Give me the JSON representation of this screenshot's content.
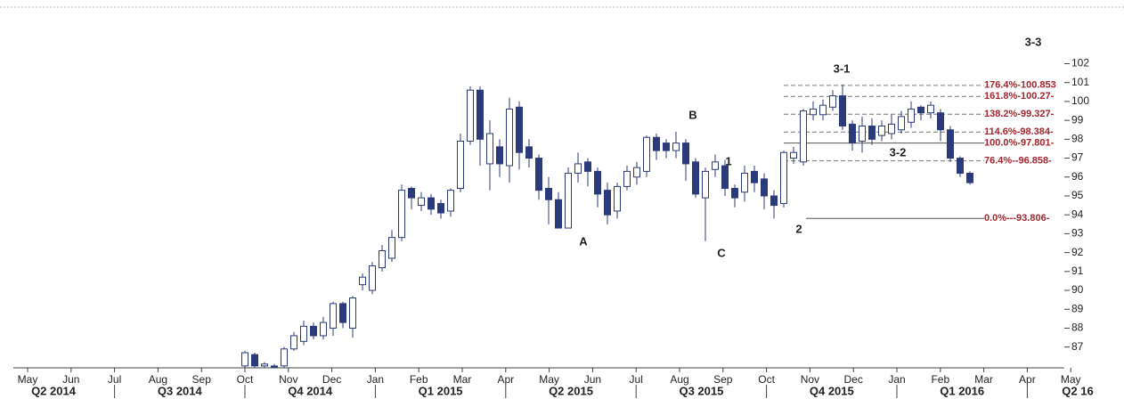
{
  "chart_data": {
    "type": "candlestick",
    "open": [
      86.0,
      86.6,
      86.0,
      86.0,
      86.0,
      86.9,
      87.3,
      88.1,
      87.6,
      88.0,
      89.3,
      88.0,
      90.3,
      90.0,
      91.2,
      91.7,
      92.8,
      95.4,
      94.5,
      94.9,
      94.6,
      94.2,
      95.4,
      97.9,
      100.6,
      96.7,
      97.6,
      96.6,
      99.7,
      97.6,
      97.0,
      95.4,
      94.8,
      93.3,
      96.2,
      96.8,
      96.3,
      95.3,
      94.2,
      95.5,
      96.0,
      96.3,
      98.1,
      97.8,
      97.4,
      97.8,
      96.8,
      94.9,
      96.4,
      96.6,
      95.4,
      95.2,
      96.3,
      95.9,
      95.0,
      94.6,
      97.0,
      96.8,
      99.3,
      99.3,
      99.7,
      100.3,
      98.8,
      97.9,
      98.7,
      98.2,
      98.3,
      98.5,
      98.9,
      99.7,
      99.4,
      99.4,
      98.5,
      97.0,
      96.2
    ],
    "high": [
      86.8,
      86.7,
      86.2,
      86.1,
      87.0,
      87.8,
      88.4,
      88.3,
      88.6,
      89.4,
      89.4,
      89.7,
      90.9,
      91.5,
      92.4,
      93.2,
      95.6,
      95.5,
      95.2,
      95.1,
      94.8,
      95.4,
      98.3,
      100.8,
      100.8,
      99.0,
      98.0,
      100.2,
      100.0,
      98.0,
      97.2,
      96.0,
      95.2,
      96.5,
      97.3,
      97.0,
      96.5,
      95.7,
      95.7,
      96.6,
      96.8,
      98.2,
      98.3,
      98.0,
      98.4,
      98.0,
      97.0,
      96.5,
      97.2,
      96.9,
      95.6,
      96.6,
      96.6,
      96.2,
      95.3,
      97.4,
      97.6,
      99.6,
      100.0,
      100.1,
      100.6,
      100.9,
      99.0,
      99.2,
      99.1,
      99.0,
      99.3,
      99.5,
      100.0,
      99.8,
      100.0,
      99.6,
      98.7,
      97.1,
      96.3
    ],
    "low": [
      85.9,
      85.9,
      85.9,
      85.9,
      85.9,
      86.8,
      87.1,
      87.4,
      87.4,
      87.6,
      88.0,
      87.5,
      90.0,
      89.8,
      91.0,
      91.5,
      92.6,
      94.3,
      94.2,
      94.0,
      93.8,
      93.9,
      95.2,
      97.7,
      96.6,
      95.3,
      96.0,
      95.7,
      96.4,
      96.5,
      94.8,
      93.5,
      93.3,
      93.3,
      95.7,
      95.5,
      94.4,
      93.5,
      93.8,
      95.3,
      95.6,
      96.0,
      96.9,
      97.0,
      97.0,
      95.8,
      94.9,
      92.6,
      96.0,
      95.0,
      94.4,
      94.7,
      95.2,
      94.3,
      93.8,
      94.4,
      96.7,
      96.6,
      99.0,
      99.0,
      99.5,
      98.5,
      97.4,
      97.3,
      97.7,
      97.9,
      98.0,
      98.3,
      98.6,
      99.0,
      99.1,
      97.9,
      96.8,
      96.0,
      95.6
    ],
    "close": [
      86.7,
      86.0,
      86.1,
      85.95,
      86.9,
      87.6,
      88.1,
      87.6,
      88.3,
      89.3,
      88.3,
      89.6,
      90.7,
      91.3,
      92.1,
      92.8,
      95.3,
      94.9,
      94.9,
      94.3,
      94.1,
      95.3,
      97.9,
      100.6,
      98.0,
      98.3,
      96.7,
      99.6,
      97.3,
      97.0,
      95.3,
      94.8,
      93.3,
      96.2,
      96.7,
      96.3,
      95.1,
      94.0,
      95.5,
      96.3,
      96.5,
      98.1,
      97.4,
      97.4,
      97.8,
      96.7,
      95.1,
      96.3,
      96.8,
      95.4,
      94.9,
      96.2,
      95.7,
      95.0,
      94.5,
      97.3,
      97.3,
      99.5,
      99.6,
      99.8,
      100.3,
      98.7,
      97.8,
      98.7,
      98.0,
      98.7,
      98.8,
      99.2,
      99.6,
      99.4,
      99.8,
      98.5,
      97.0,
      96.2,
      95.7
    ],
    "up_color": "#ffffff",
    "down_color": "#2b3a7a",
    "edge_color": "#2b3a7a",
    "ylim": [
      85.9,
      104.9
    ],
    "yticks": [
      87,
      88,
      89,
      90,
      91,
      92,
      93,
      94,
      95,
      96,
      97,
      98,
      99,
      100,
      101,
      102
    ],
    "months": [
      "May",
      "Jun",
      "Jul",
      "Aug",
      "Sep",
      "Oct",
      "Nov",
      "Dec",
      "Jan",
      "Feb",
      "Mar",
      "Apr",
      "May",
      "Jun",
      "Jul",
      "Aug",
      "Sep",
      "Oct",
      "Nov",
      "Dec",
      "Jan",
      "Feb",
      "Mar",
      "Apr",
      "May"
    ],
    "quarters": [
      "Q2 2014",
      "Q3 2014",
      "Q4 2014",
      "Q1 2015",
      "Q2 2015",
      "Q3 2015",
      "Q4 2015",
      "Q1 2016",
      "Q2 16"
    ],
    "fib_levels": {
      "values": [
        100.853,
        100.27,
        99.327,
        98.384,
        97.801,
        96.858,
        93.806
      ],
      "value_labels": [
        "176.4%-100.853",
        "161.8%-100.27-",
        "138.2%-99.327-",
        "114.6%-98.384-",
        "100.0%-97.801-",
        "76.4%--96.858-",
        "0.0%---93.806-"
      ],
      "color": "#a3262e"
    },
    "annotations": [
      "3-3",
      "3-1",
      "B",
      "1",
      "3-2",
      "A",
      "C",
      "2"
    ]
  }
}
